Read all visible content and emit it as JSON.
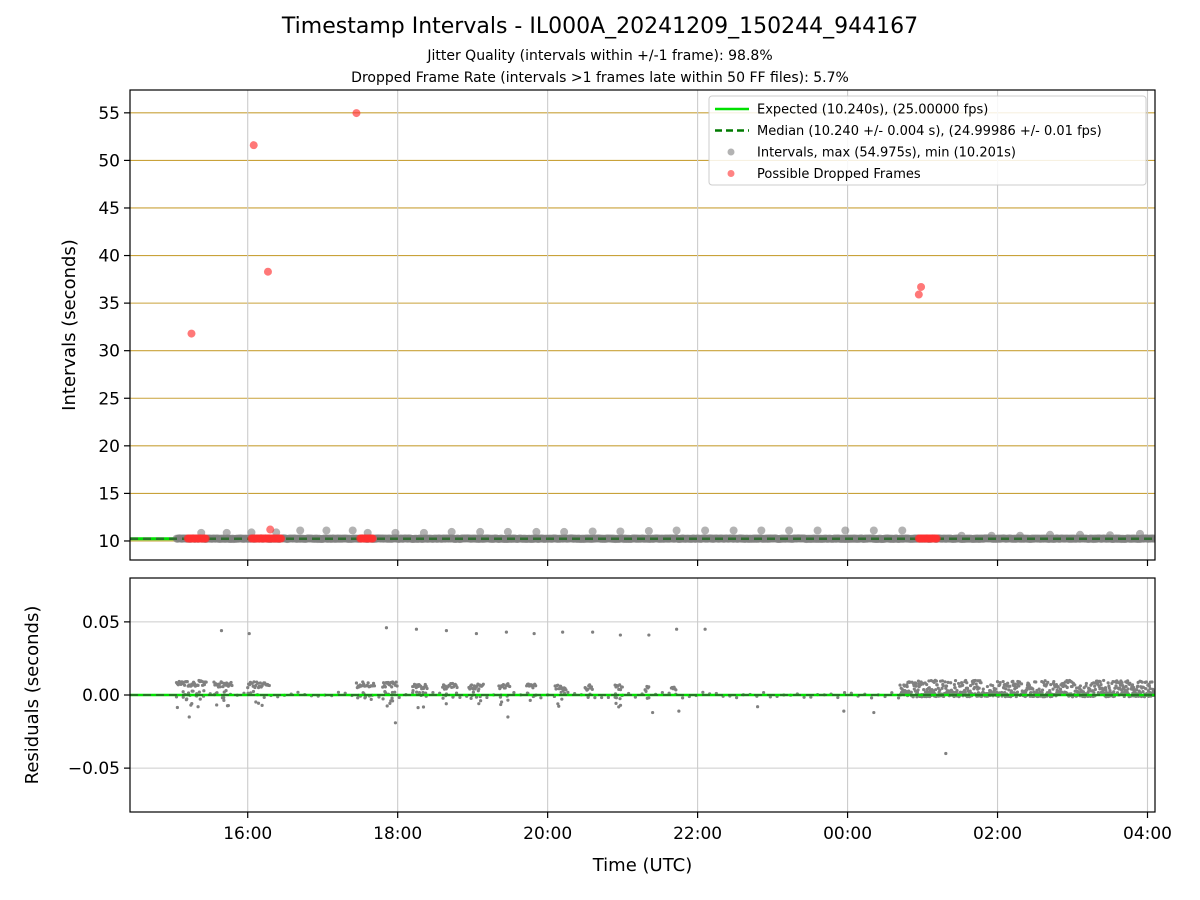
{
  "title": "Timestamp Intervals - IL000A_20241209_150244_944167",
  "subtitle_lines": [
    "Jitter Quality (intervals within +/-1 frame): 98.8%",
    "Dropped Frame Rate (intervals >1 frames late within 50 FF files): 5.7%"
  ],
  "colors": {
    "expected": "#00e000",
    "median": "#007a00",
    "intervals": "#808080",
    "dropped": "#ff3030",
    "hgrid_top": "#c9a23a"
  },
  "chart_data": [
    {
      "type": "scatter",
      "panel": "top",
      "xlabel": "",
      "ylabel": "Intervals (seconds)",
      "x_unit": "hours since 00:00 UTC on 2024-12-09 (24.0 = 00:00 next day)",
      "xlim": [
        14.43,
        28.1
      ],
      "ylim": [
        8.0,
        57.4
      ],
      "yticks": [
        10,
        15,
        20,
        25,
        30,
        35,
        40,
        45,
        50,
        55
      ],
      "xticks": [
        16,
        18,
        20,
        22,
        24,
        26,
        28
      ],
      "xtick_labels": [
        "16:00",
        "18:00",
        "20:00",
        "22:00",
        "00:00",
        "02:00",
        "04:00"
      ],
      "grid": true,
      "legend_position": "upper right",
      "legend": [
        "Expected (10.240s), (25.00000 fps)",
        "Median (10.240 +/- 0.004 s), (24.99986 +/- 0.01 fps)",
        "Intervals, max (54.975s), min (10.201s)",
        "Possible Dropped Frames"
      ],
      "expected_value": 10.24,
      "median_value": 10.24,
      "intervals_range": [
        15.05,
        28.1
      ],
      "intervals_elevated": [
        [
          15.38,
          10.85
        ],
        [
          15.72,
          10.85
        ],
        [
          16.05,
          10.9
        ],
        [
          16.38,
          10.9
        ],
        [
          16.7,
          11.1
        ],
        [
          17.05,
          11.1
        ],
        [
          17.4,
          11.1
        ],
        [
          17.6,
          10.85
        ],
        [
          17.97,
          10.85
        ],
        [
          18.35,
          10.85
        ],
        [
          18.72,
          10.95
        ],
        [
          19.1,
          10.95
        ],
        [
          19.47,
          10.95
        ],
        [
          19.85,
          10.95
        ],
        [
          20.22,
          10.95
        ],
        [
          20.6,
          11.0
        ],
        [
          20.97,
          11.0
        ],
        [
          21.35,
          11.05
        ],
        [
          21.72,
          11.1
        ],
        [
          22.1,
          11.1
        ],
        [
          22.48,
          11.1
        ],
        [
          22.85,
          11.1
        ],
        [
          23.22,
          11.1
        ],
        [
          23.6,
          11.1
        ],
        [
          23.97,
          11.1
        ],
        [
          24.35,
          11.1
        ],
        [
          24.73,
          11.1
        ],
        [
          25.52,
          10.55
        ],
        [
          25.92,
          10.55
        ],
        [
          26.3,
          10.55
        ],
        [
          26.7,
          10.65
        ],
        [
          27.1,
          10.65
        ],
        [
          27.5,
          10.6
        ],
        [
          27.9,
          10.75
        ]
      ],
      "dropped_outliers": [
        [
          15.25,
          31.8
        ],
        [
          16.08,
          51.6
        ],
        [
          16.27,
          38.3
        ],
        [
          17.45,
          54.975
        ],
        [
          24.95,
          35.9
        ],
        [
          24.98,
          36.7
        ],
        [
          16.3,
          11.2
        ]
      ],
      "dropped_clusters": [
        [
          15.2,
          15.45
        ],
        [
          16.05,
          16.45
        ],
        [
          17.5,
          17.68
        ],
        [
          24.95,
          25.2
        ]
      ]
    },
    {
      "type": "scatter",
      "panel": "bottom",
      "xlabel": "Time (UTC)",
      "ylabel": "Residuals (seconds)",
      "xlim": [
        14.43,
        28.1
      ],
      "ylim": [
        -0.08,
        0.08
      ],
      "yticks": [
        -0.05,
        0.0,
        0.05
      ],
      "ytick_labels": [
        "−0.05",
        "0.00",
        "0.05"
      ],
      "xticks": [
        16,
        18,
        20,
        22,
        24,
        26,
        28
      ],
      "xtick_labels": [
        "16:00",
        "18:00",
        "20:00",
        "22:00",
        "00:00",
        "02:00",
        "04:00"
      ],
      "grid": true,
      "residual_outliers": [
        [
          15.65,
          0.044
        ],
        [
          16.02,
          0.042
        ],
        [
          17.85,
          0.046
        ],
        [
          18.25,
          0.045
        ],
        [
          18.65,
          0.044
        ],
        [
          19.05,
          0.042
        ],
        [
          19.45,
          0.043
        ],
        [
          19.82,
          0.042
        ],
        [
          20.2,
          0.043
        ],
        [
          20.6,
          0.043
        ],
        [
          20.97,
          0.041
        ],
        [
          21.35,
          0.041
        ],
        [
          21.72,
          0.045
        ],
        [
          22.1,
          0.045
        ],
        [
          15.22,
          -0.015
        ],
        [
          17.97,
          -0.019
        ],
        [
          19.47,
          -0.015
        ],
        [
          25.31,
          -0.04
        ],
        [
          24.35,
          -0.012
        ],
        [
          23.95,
          -0.011
        ],
        [
          22.8,
          -0.008
        ],
        [
          21.75,
          -0.011
        ],
        [
          21.4,
          -0.012
        ]
      ],
      "residual_clusters": [
        [
          15.05,
          15.45,
          0.008
        ],
        [
          15.55,
          15.8,
          0.007
        ],
        [
          16.0,
          16.3,
          0.007
        ],
        [
          17.45,
          17.7,
          0.007
        ],
        [
          17.8,
          18.0,
          0.007
        ],
        [
          18.2,
          18.4,
          0.006
        ],
        [
          18.6,
          18.8,
          0.006
        ],
        [
          18.95,
          19.15,
          0.006
        ],
        [
          19.35,
          19.5,
          0.006
        ],
        [
          19.72,
          19.85,
          0.006
        ],
        [
          20.1,
          20.25,
          0.005
        ],
        [
          20.5,
          20.6,
          0.005
        ],
        [
          20.9,
          21.0,
          0.005
        ],
        [
          21.3,
          21.35,
          0.004
        ],
        [
          21.65,
          21.72,
          0.004
        ]
      ]
    }
  ]
}
